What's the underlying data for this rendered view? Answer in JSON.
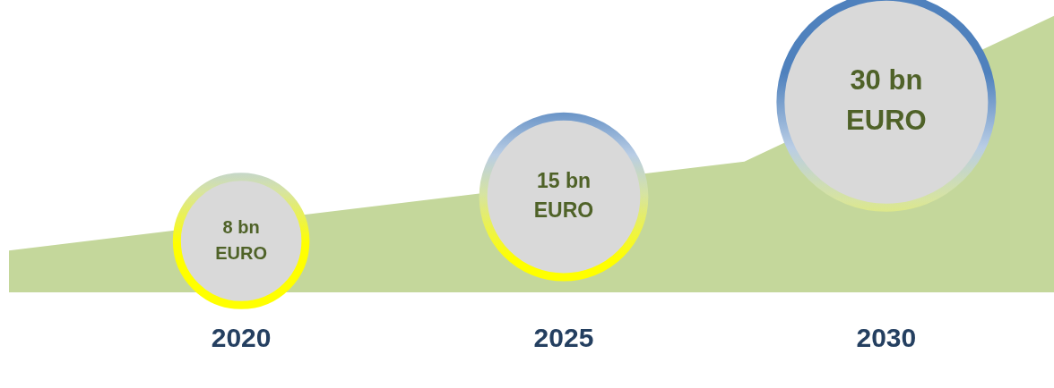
{
  "chart_data": {
    "type": "bubble",
    "xlim": [
      2016.4,
      2032.6
    ],
    "xticks": [
      2020,
      2025,
      2030
    ],
    "tick_labels": "x",
    "series": [
      {
        "type": "area",
        "color": "#c4d79b",
        "x": [
          2016.4,
          2021.1,
          2023.6,
          2027.8,
          2029.6,
          2031.2,
          2032.6
        ],
        "values": [
          6.5,
          null,
          null,
          20.6,
          null,
          null,
          43.7
        ]
      },
      {
        "color": "#d9d9d9",
        "x": [
          2020,
          2025,
          2030
        ],
        "values": [
          8,
          15,
          30
        ],
        "sizes": [
          0.37,
          0.58,
          1
        ],
        "value_labels": [
          "8 bn EURO",
          "15 bn EURO",
          "30 bn EURO"
        ]
      }
    ]
  }
}
